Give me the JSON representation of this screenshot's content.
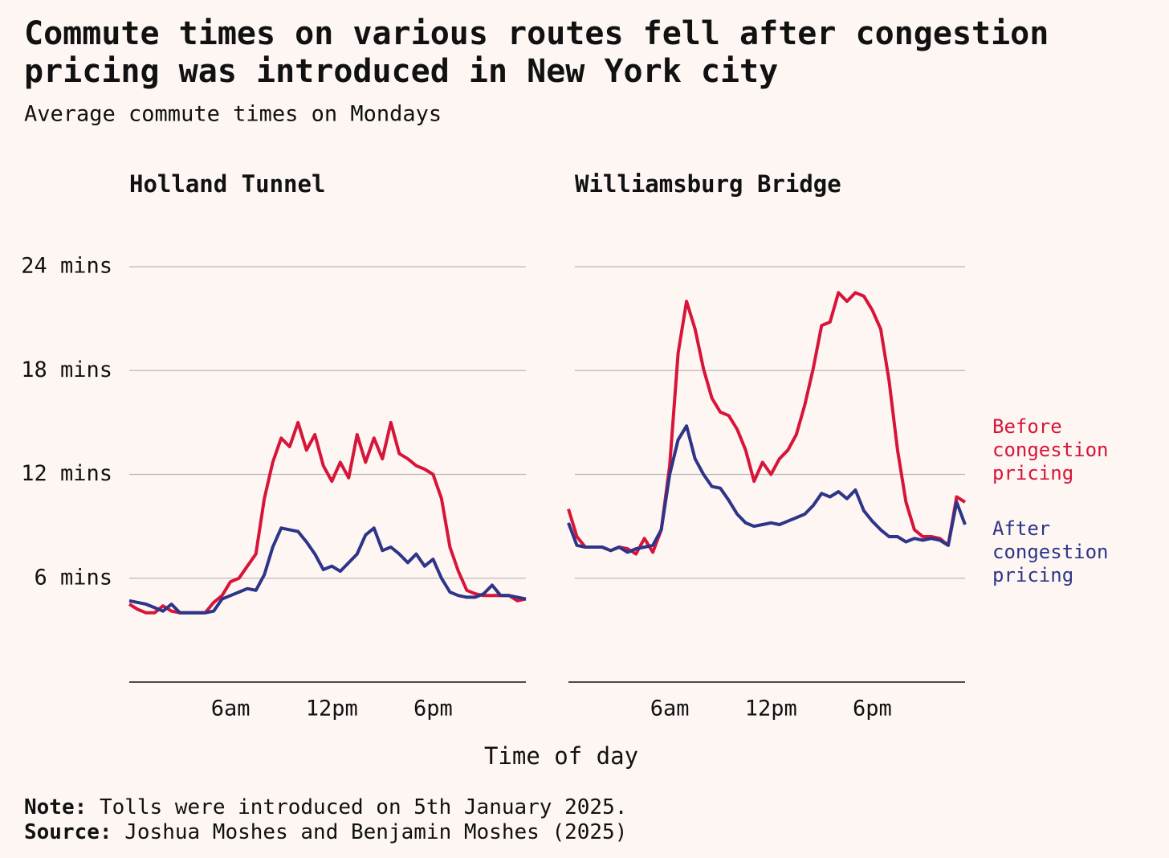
{
  "title": "Commute times on various routes fell after congestion pricing was introduced in New York city",
  "subtitle": "Average commute times on Mondays",
  "x_label": "Time of day",
  "note": {
    "label": "Note:",
    "text": "Tolls were introduced on 5th January 2025."
  },
  "source": {
    "label": "Source:",
    "text": "Joshua Moshes and Benjamin Moshes (2025)"
  },
  "chart_data": [
    {
      "type": "line",
      "title": "Holland Tunnel",
      "x": [
        0,
        0.5,
        1,
        1.5,
        2,
        2.5,
        3,
        3.5,
        4,
        4.5,
        5,
        5.5,
        6,
        6.5,
        7,
        7.5,
        8,
        8.5,
        9,
        9.5,
        10,
        10.5,
        11,
        11.5,
        12,
        12.5,
        13,
        13.5,
        14,
        14.5,
        15,
        15.5,
        16,
        16.5,
        17,
        17.5,
        18,
        18.5,
        19,
        19.5,
        20,
        20.5,
        21,
        21.5,
        22,
        22.5,
        23,
        23.5
      ],
      "xlim": [
        0,
        23.5
      ],
      "xticks": [
        {
          "value": 6,
          "label": "6am"
        },
        {
          "value": 12,
          "label": "12pm"
        },
        {
          "value": 18,
          "label": "6pm"
        }
      ],
      "ylim": [
        0,
        24
      ],
      "yticks": [
        {
          "value": 6,
          "label": "6 mins"
        },
        {
          "value": 12,
          "label": "12 mins"
        },
        {
          "value": 18,
          "label": "18 mins"
        },
        {
          "value": 24,
          "label": "24 mins"
        }
      ],
      "grid": true,
      "series": [
        {
          "color": "#d7153a",
          "values": [
            4.5,
            4.2,
            4.0,
            4.0,
            4.4,
            4.1,
            4.0,
            4.0,
            4.0,
            4.0,
            4.6,
            5.0,
            5.8,
            6.0,
            6.7,
            7.4,
            10.6,
            12.7,
            14.1,
            13.6,
            15.0,
            13.4,
            14.3,
            12.5,
            11.6,
            12.7,
            11.8,
            14.3,
            12.7,
            14.1,
            12.9,
            15.0,
            13.2,
            12.9,
            12.5,
            12.3,
            12.0,
            10.6,
            7.8,
            6.4,
            5.3,
            5.1,
            5.0,
            5.0,
            5.0,
            5.0,
            4.7,
            4.8
          ]
        },
        {
          "color": "#2e3589",
          "values": [
            4.7,
            4.6,
            4.5,
            4.3,
            4.1,
            4.5,
            4.0,
            4.0,
            4.0,
            4.0,
            4.1,
            4.8,
            5.0,
            5.2,
            5.4,
            5.3,
            6.2,
            7.8,
            8.9,
            8.8,
            8.7,
            8.1,
            7.4,
            6.5,
            6.7,
            6.4,
            6.9,
            7.4,
            8.5,
            8.9,
            7.6,
            7.8,
            7.4,
            6.9,
            7.4,
            6.7,
            7.1,
            6.0,
            5.2,
            5.0,
            4.9,
            4.9,
            5.1,
            5.6,
            5.0,
            5.0,
            4.9,
            4.8
          ]
        }
      ]
    },
    {
      "type": "line",
      "title": "Williamsburg Bridge",
      "x": [
        0,
        0.5,
        1,
        1.5,
        2,
        2.5,
        3,
        3.5,
        4,
        4.5,
        5,
        5.5,
        6,
        6.5,
        7,
        7.5,
        8,
        8.5,
        9,
        9.5,
        10,
        10.5,
        11,
        11.5,
        12,
        12.5,
        13,
        13.5,
        14,
        14.5,
        15,
        15.5,
        16,
        16.5,
        17,
        17.5,
        18,
        18.5,
        19,
        19.5,
        20,
        20.5,
        21,
        21.5,
        22,
        22.5,
        23,
        23.5
      ],
      "xlim": [
        0,
        23.5
      ],
      "xticks": [
        {
          "value": 6,
          "label": "6am"
        },
        {
          "value": 12,
          "label": "12pm"
        },
        {
          "value": 18,
          "label": "6pm"
        }
      ],
      "ylim": [
        0,
        24
      ],
      "yticks": [
        6,
        12,
        18,
        24
      ],
      "grid": true,
      "series": [
        {
          "name": "Before congestion pricing",
          "color": "#d7153a",
          "values": [
            10.0,
            8.4,
            7.8,
            7.8,
            7.8,
            7.6,
            7.8,
            7.7,
            7.4,
            8.3,
            7.5,
            8.8,
            12.5,
            19.0,
            22.0,
            20.4,
            18.1,
            16.4,
            15.6,
            15.4,
            14.6,
            13.4,
            11.6,
            12.7,
            12.0,
            12.9,
            13.4,
            14.3,
            16.0,
            18.1,
            20.6,
            20.8,
            22.5,
            22.0,
            22.5,
            22.3,
            21.5,
            20.4,
            17.4,
            13.4,
            10.4,
            8.8,
            8.4,
            8.4,
            8.3,
            7.9,
            10.7,
            10.4
          ]
        },
        {
          "name": "After congestion pricing",
          "color": "#2e3589",
          "values": [
            9.2,
            7.9,
            7.8,
            7.8,
            7.8,
            7.6,
            7.8,
            7.5,
            7.7,
            7.8,
            7.9,
            8.8,
            12.0,
            14.0,
            14.8,
            12.9,
            12.0,
            11.3,
            11.2,
            10.5,
            9.7,
            9.2,
            9.0,
            9.1,
            9.2,
            9.1,
            9.3,
            9.5,
            9.7,
            10.2,
            10.9,
            10.7,
            11.0,
            10.6,
            11.1,
            9.9,
            9.3,
            8.8,
            8.4,
            8.4,
            8.1,
            8.3,
            8.2,
            8.3,
            8.2,
            7.9,
            10.4,
            9.1
          ]
        }
      ]
    }
  ]
}
